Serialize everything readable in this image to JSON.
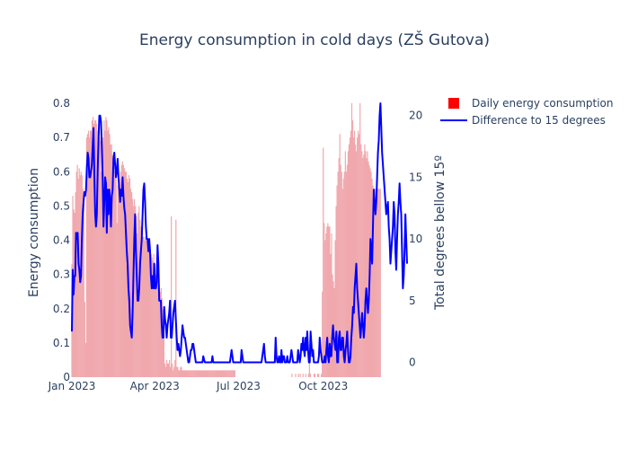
{
  "chart_data": {
    "type": "bar+line",
    "title": "Energy consumption in cold days (ZŠ Gutova)",
    "y_left_label": "Energy consumption",
    "y_right_label": "Total degrees bellow 15º",
    "x_ticks": [
      "Jan 2023",
      "Apr 2023",
      "Jul 2023",
      "Oct 2023"
    ],
    "y_left_ticks": [
      "0",
      "0.1",
      "0.2",
      "0.3",
      "0.4",
      "0.5",
      "0.6",
      "0.7",
      "0.8"
    ],
    "y_right_ticks": [
      "0",
      "5",
      "10",
      "15",
      "20"
    ],
    "ylim_left": [
      0,
      0.8
    ],
    "ylim_right": [
      -1.2,
      21
    ],
    "xlim": [
      "2023-01-01",
      "2023-12-31"
    ],
    "legend_position": "top-right",
    "colors": {
      "bars": "#f0a8ad",
      "bar_legend": "#ff0000",
      "line": "#0000ff"
    },
    "series": [
      {
        "name": "Daily energy consumption",
        "type": "bar",
        "x_start": "2023-01-01",
        "values": [
          0.33,
          0.53,
          0.49,
          0.48,
          0.54,
          0.6,
          0.62,
          0.58,
          0.61,
          0.59,
          0.6,
          0.59,
          0.55,
          0.52,
          0.22,
          0.1,
          0.7,
          0.71,
          0.72,
          0.7,
          0.72,
          0.72,
          0.75,
          0.76,
          0.74,
          0.75,
          0.75,
          0.74,
          0.72,
          0.7,
          0.7,
          0.69,
          0.6,
          0.7,
          0.7,
          0.75,
          0.72,
          0.76,
          0.75,
          0.72,
          0.73,
          0.71,
          0.68,
          0.68,
          0.65,
          0.61,
          0.6,
          0.59,
          0.58,
          0.45,
          0.56,
          0.57,
          0.58,
          0.6,
          0.62,
          0.63,
          0.62,
          0.61,
          0.6,
          0.6,
          0.58,
          0.57,
          0.59,
          0.58,
          0.55,
          0.54,
          0.52,
          0.5,
          0.52,
          0.5,
          0.47,
          0.42,
          0.48,
          0.5,
          0.46,
          0.44,
          0.42,
          0.41,
          0.41,
          0.4,
          0.41,
          0.4,
          0.4,
          0.37,
          0.37,
          0.38,
          0.36,
          0.35,
          0.34,
          0.36,
          0.33,
          0.3,
          0.28,
          0.3,
          0.27,
          0.27,
          0.25,
          0.26,
          0.23,
          0.2,
          0.18,
          0.04,
          0.03,
          0.05,
          0.04,
          0.04,
          0.05,
          0.03,
          0.47,
          0.04,
          0.02,
          0.03,
          0.05,
          0.46,
          0.03,
          0.03,
          0.02,
          0.02,
          0.03,
          0.03,
          0.02,
          0.02,
          0.02,
          0.02,
          0.02,
          0.02,
          0.02,
          0.02,
          0.02,
          0.02,
          0.02,
          0.02,
          0.02,
          0.02,
          0.02,
          0.02,
          0.02,
          0.02,
          0.02,
          0.02,
          0.02,
          0.02,
          0.02,
          0.02,
          0.02,
          0.02,
          0.02,
          0.02,
          0.02,
          0.02,
          0.02,
          0.02,
          0.02,
          0.02,
          0.02,
          0.02,
          0.02,
          0.02,
          0.02,
          0.02,
          0.02,
          0.02,
          0.02,
          0.02,
          0.02,
          0.02,
          0.02,
          0.02,
          0.02,
          0.02,
          0.02,
          0.02,
          0.02,
          0.02,
          0.02,
          0.02,
          0.02,
          0.02,
          0,
          0,
          0,
          0,
          0,
          0,
          0,
          0,
          0,
          0,
          0,
          0,
          0,
          0,
          0,
          0,
          0,
          0,
          0,
          0,
          0,
          0,
          0,
          0,
          0,
          0,
          0,
          0,
          0,
          0,
          0,
          0,
          0,
          0,
          0,
          0,
          0,
          0,
          0,
          0,
          0,
          0,
          0,
          0,
          0,
          0,
          0,
          0,
          0,
          0,
          0,
          0,
          0,
          0,
          0,
          0,
          0,
          0,
          0,
          0,
          0,
          0.01,
          0,
          0,
          0,
          0.01,
          0,
          0,
          0.01,
          0,
          0.01,
          0,
          0,
          0.01,
          0,
          0,
          0.01,
          0,
          0,
          0.01,
          0.05,
          0.01,
          0,
          0,
          0,
          0.01,
          0.01,
          0,
          0,
          0.01,
          0.01,
          0,
          0,
          0.01,
          0.25,
          0.67,
          0.45,
          0.4,
          0.42,
          0.44,
          0.45,
          0.44,
          0.44,
          0.36,
          0.42,
          0.3,
          0.28,
          0.26,
          0.4,
          0.5,
          0.56,
          0.6,
          0.64,
          0.71,
          0.62,
          0.6,
          0.55,
          0.58,
          0.6,
          0.66,
          0.6,
          0.62,
          0.66,
          0.68,
          0.7,
          0.72,
          0.8,
          0.75,
          0.7,
          0.72,
          0.68,
          0.66,
          0.7,
          0.72,
          0.71,
          0.8,
          0.68,
          0.66,
          0.64,
          0.65,
          0.68,
          0.66,
          0.64,
          0.66,
          0.63,
          0.62,
          0.61,
          0.6,
          0.58,
          0.56,
          0.55,
          0.55,
          0.55,
          0.55,
          0.55,
          0.55,
          0.55,
          0.55
        ]
      },
      {
        "name": "Difference to 15 degrees",
        "type": "line",
        "x_start": "2023-01-01",
        "values": [
          2.5,
          7.5,
          5.5,
          7,
          7,
          10.5,
          10,
          10.5,
          8,
          7.5,
          6.5,
          7,
          10,
          12,
          13,
          13.8,
          13.5,
          14,
          15.8,
          17,
          16.5,
          15,
          15,
          15.5,
          16,
          17.5,
          19,
          15.2,
          12,
          11,
          12,
          15.5,
          18,
          20,
          20,
          19.5,
          17.5,
          15,
          11,
          13,
          15,
          14.5,
          10.5,
          14,
          12,
          14,
          13,
          11,
          13.5,
          14,
          16.5,
          17,
          16,
          15,
          15.5,
          16.5,
          15,
          14,
          13,
          14,
          13.5,
          15,
          13.5,
          12.5,
          12,
          10.5,
          9,
          8,
          6,
          5,
          3,
          2.5,
          2,
          4,
          7,
          10,
          12,
          9,
          7,
          5,
          5,
          6,
          8,
          9,
          10,
          12,
          14,
          14.5,
          13,
          11,
          10,
          10,
          9,
          10,
          9,
          7,
          6,
          7,
          6,
          8,
          6,
          6,
          6.5,
          9.5,
          8,
          5,
          5,
          5,
          3,
          2,
          2,
          4.5,
          3.5,
          3,
          2,
          3,
          3.5,
          4,
          5,
          2,
          2,
          3,
          4,
          4.5,
          5,
          3.5,
          2,
          1,
          1.5,
          1,
          0.5,
          1,
          2,
          3,
          2.5,
          2,
          2,
          1.5,
          1,
          0.5,
          0,
          0,
          0.5,
          1,
          1,
          1.5,
          1.5,
          1,
          0.5,
          0,
          0,
          0,
          0,
          0,
          0,
          0,
          0,
          0,
          0.5,
          0.2,
          0,
          0,
          0,
          0,
          0,
          0,
          0,
          0,
          0,
          0.5,
          0,
          0,
          0,
          0,
          0,
          0,
          0,
          0,
          0,
          0,
          0,
          0,
          0,
          0,
          0,
          0,
          0,
          0,
          0,
          0,
          0,
          0.5,
          1,
          0.5,
          0,
          0,
          0,
          0,
          0,
          0,
          0,
          0,
          0,
          0,
          1,
          0.5,
          0,
          0,
          0,
          0,
          0,
          0,
          0,
          0,
          0,
          0,
          0,
          0,
          0,
          0,
          0,
          0,
          0,
          0,
          0,
          0,
          0,
          0,
          0,
          0.5,
          1,
          1.5,
          0.5,
          0,
          0,
          0,
          0,
          0,
          0,
          0,
          0,
          0,
          0,
          0,
          0,
          2,
          0.5,
          0,
          0,
          0.5,
          0,
          0,
          1,
          0,
          0.5,
          0.5,
          0,
          0,
          0,
          0.5,
          0,
          0,
          0,
          0.5,
          1,
          0.5,
          0,
          0,
          0,
          0,
          0,
          0,
          1,
          0.5,
          0,
          0.5,
          1.5,
          1,
          2,
          1,
          0.5,
          2,
          1,
          2.5,
          1,
          0,
          0,
          2.5,
          1.5,
          0.5,
          1,
          0,
          0,
          0,
          0,
          0,
          0,
          0.5,
          2,
          1,
          0.5,
          0,
          0,
          0,
          0.5,
          0,
          1,
          2,
          0.5,
          0,
          1.5,
          0.5,
          0.5,
          2,
          3,
          2,
          1.5,
          1,
          2.5,
          0,
          0,
          2,
          2.5,
          1,
          1,
          2,
          2,
          0.5,
          0,
          1,
          1.5,
          2.5,
          1,
          0,
          0,
          0.5,
          2,
          3,
          4.5,
          4,
          6,
          7,
          8,
          6,
          5,
          4,
          3,
          2,
          3,
          4,
          3,
          2,
          3,
          5,
          6,
          5,
          4,
          5,
          7,
          10,
          9,
          8,
          11,
          14,
          13,
          12,
          13,
          15,
          17,
          18,
          20,
          21,
          19,
          17,
          16,
          15,
          14,
          13,
          12,
          12.5,
          13,
          11,
          10,
          8,
          9,
          10,
          11,
          13,
          12,
          9,
          7.5,
          10,
          12,
          13,
          14.5,
          13,
          12,
          9,
          6,
          7,
          9,
          12,
          10,
          8
        ]
      }
    ]
  }
}
